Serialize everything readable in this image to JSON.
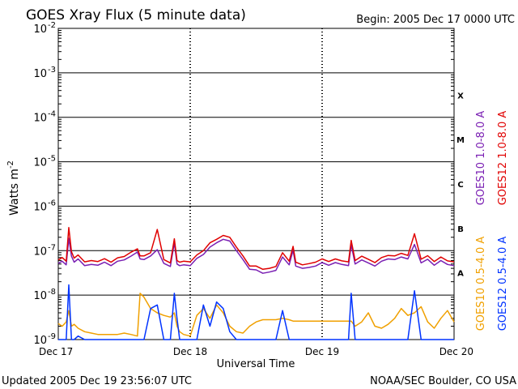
{
  "chart_data": {
    "type": "line",
    "title": "GOES Xray Flux (5 minute data)",
    "begin": "Begin:  2005 Dec 17 0000 UTC",
    "ylabel_main": "Watts m",
    "ylabel_sup": "-2",
    "xlabel": "Universal Time",
    "yscale": "log",
    "ylim": [
      1e-09,
      0.01
    ],
    "y_ticks": [
      {
        "exp": -2,
        "label": "-2"
      },
      {
        "exp": -3,
        "label": "-3"
      },
      {
        "exp": -4,
        "label": "-4"
      },
      {
        "exp": -5,
        "label": "-5"
      },
      {
        "exp": -6,
        "label": "-6"
      },
      {
        "exp": -7,
        "label": "-7"
      },
      {
        "exp": -8,
        "label": "-8"
      },
      {
        "exp": -9,
        "label": "-9"
      }
    ],
    "y_tick_base": "10",
    "x_ticks": [
      "Dec 17",
      "Dec 18",
      "Dec 19",
      "Dec 20"
    ],
    "x_range_days": [
      0,
      3
    ],
    "classes": [
      {
        "label": "X",
        "exp": -3.5
      },
      {
        "label": "M",
        "exp": -4.5
      },
      {
        "label": "C",
        "exp": -5.5
      },
      {
        "label": "B",
        "exp": -6.5
      },
      {
        "label": "A",
        "exp": -7.5
      }
    ],
    "series": [
      {
        "name": "GOES10 1.0-8.0 A",
        "color": "#7a1fb3",
        "x": [
          0,
          0.03,
          0.06,
          0.08,
          0.1,
          0.12,
          0.15,
          0.2,
          0.25,
          0.3,
          0.35,
          0.4,
          0.45,
          0.5,
          0.55,
          0.6,
          0.62,
          0.65,
          0.7,
          0.75,
          0.8,
          0.85,
          0.88,
          0.9,
          0.92,
          0.95,
          1.0,
          1.05,
          1.1,
          1.15,
          1.2,
          1.25,
          1.3,
          1.35,
          1.4,
          1.45,
          1.5,
          1.55,
          1.6,
          1.65,
          1.7,
          1.75,
          1.78,
          1.8,
          1.85,
          1.9,
          1.95,
          2.0,
          2.05,
          2.1,
          2.15,
          2.2,
          2.22,
          2.25,
          2.3,
          2.35,
          2.4,
          2.45,
          2.5,
          2.55,
          2.6,
          2.65,
          2.7,
          2.75,
          2.8,
          2.85,
          2.9,
          2.95,
          3.0
        ],
        "y": [
          5.2e-08,
          5.8e-08,
          4.8e-08,
          1.9e-07,
          7.5e-08,
          5.5e-08,
          6.5e-08,
          4.6e-08,
          4.9e-08,
          4.7e-08,
          5.5e-08,
          4.6e-08,
          5.8e-08,
          6.2e-08,
          7.5e-08,
          9.3e-08,
          6.5e-08,
          6.3e-08,
          7.6e-08,
          1.05e-07,
          5.2e-08,
          4.4e-08,
          1.5e-07,
          5e-08,
          4.6e-08,
          4.8e-08,
          4.6e-08,
          6.7e-08,
          8.2e-08,
          1.2e-07,
          1.5e-07,
          1.8e-07,
          1.65e-07,
          1e-07,
          6.3e-08,
          3.8e-08,
          3.7e-08,
          3.1e-08,
          3.3e-08,
          3.6e-08,
          7.2e-08,
          4.8e-08,
          1.02e-07,
          4.5e-08,
          4e-08,
          4.2e-08,
          4.5e-08,
          5.4e-08,
          4.7e-08,
          5.4e-08,
          4.9e-08,
          4.6e-08,
          1.35e-07,
          5e-08,
          6.2e-08,
          5.3e-08,
          4.5e-08,
          5.8e-08,
          6.5e-08,
          6.3e-08,
          7.2e-08,
          6.5e-08,
          1.38e-07,
          5.3e-08,
          6.4e-08,
          4.7e-08,
          6e-08,
          4.9e-08,
          4.6e-08
        ]
      },
      {
        "name": "GOES12 1.0-8.0 A",
        "color": "#e00000",
        "x": [
          0,
          0.03,
          0.06,
          0.08,
          0.1,
          0.12,
          0.15,
          0.2,
          0.25,
          0.3,
          0.35,
          0.4,
          0.45,
          0.5,
          0.55,
          0.6,
          0.62,
          0.65,
          0.7,
          0.75,
          0.8,
          0.85,
          0.88,
          0.9,
          0.92,
          0.95,
          1.0,
          1.05,
          1.1,
          1.15,
          1.2,
          1.25,
          1.3,
          1.35,
          1.4,
          1.45,
          1.5,
          1.55,
          1.6,
          1.65,
          1.7,
          1.75,
          1.78,
          1.8,
          1.85,
          1.9,
          1.95,
          2.0,
          2.05,
          2.1,
          2.15,
          2.2,
          2.22,
          2.25,
          2.3,
          2.35,
          2.4,
          2.45,
          2.5,
          2.55,
          2.6,
          2.65,
          2.7,
          2.75,
          2.8,
          2.85,
          2.9,
          2.95,
          3.0
        ],
        "y": [
          6.2e-08,
          7e-08,
          5.8e-08,
          3.3e-07,
          9.5e-08,
          6.8e-08,
          8e-08,
          5.6e-08,
          6e-08,
          5.7e-08,
          6.6e-08,
          5.5e-08,
          6.9e-08,
          7.4e-08,
          9.2e-08,
          1.1e-07,
          7.6e-08,
          7.6e-08,
          9e-08,
          3e-07,
          6.3e-08,
          5.3e-08,
          1.85e-07,
          6e-08,
          5.5e-08,
          5.8e-08,
          5.6e-08,
          8e-08,
          1e-07,
          1.5e-07,
          1.8e-07,
          2.2e-07,
          2e-07,
          1.2e-07,
          7.6e-08,
          4.5e-08,
          4.5e-08,
          3.8e-08,
          4e-08,
          4.4e-08,
          9e-08,
          5.8e-08,
          1.25e-07,
          5.5e-08,
          4.8e-08,
          5.1e-08,
          5.5e-08,
          6.5e-08,
          5.7e-08,
          6.5e-08,
          5.9e-08,
          5.6e-08,
          1.7e-07,
          6e-08,
          7.5e-08,
          6.4e-08,
          5.4e-08,
          7e-08,
          7.8e-08,
          7.6e-08,
          8.7e-08,
          7.8e-08,
          2.4e-07,
          6.4e-08,
          7.7e-08,
          5.7e-08,
          7.2e-08,
          5.9e-08,
          5.6e-08
        ]
      },
      {
        "name": "GOES10 0.5-4.0 A",
        "color": "#f0a000",
        "x": [
          0,
          0.03,
          0.06,
          0.08,
          0.1,
          0.12,
          0.15,
          0.2,
          0.25,
          0.3,
          0.35,
          0.4,
          0.45,
          0.5,
          0.55,
          0.6,
          0.62,
          0.65,
          0.7,
          0.75,
          0.8,
          0.85,
          0.88,
          0.9,
          0.92,
          0.95,
          1.0,
          1.05,
          1.1,
          1.15,
          1.2,
          1.25,
          1.3,
          1.35,
          1.4,
          1.45,
          1.5,
          1.55,
          1.6,
          1.65,
          1.7,
          1.75,
          1.78,
          1.8,
          1.85,
          1.9,
          1.95,
          2.0,
          2.05,
          2.1,
          2.15,
          2.2,
          2.22,
          2.25,
          2.3,
          2.35,
          2.4,
          2.45,
          2.5,
          2.55,
          2.6,
          2.65,
          2.7,
          2.75,
          2.8,
          2.85,
          2.9,
          2.95,
          3.0
        ],
        "y": [
          2.3e-09,
          2e-09,
          2.5e-09,
          4.5e-09,
          2e-09,
          2.2e-09,
          1.8e-09,
          1.5e-09,
          1.4e-09,
          1.3e-09,
          1.3e-09,
          1.3e-09,
          1.3e-09,
          1.4e-09,
          1.3e-09,
          1.2e-09,
          1.1e-08,
          9e-09,
          5e-09,
          4e-09,
          3.5e-09,
          3.2e-09,
          4e-09,
          2e-09,
          1.5e-09,
          1.3e-09,
          1.2e-09,
          3.5e-09,
          5e-09,
          3e-09,
          6e-09,
          4e-09,
          2e-09,
          1.5e-09,
          1.4e-09,
          2e-09,
          2.5e-09,
          2.8e-09,
          2.8e-09,
          2.8e-09,
          3e-09,
          2.8e-09,
          2.6e-09,
          2.6e-09,
          2.6e-09,
          2.6e-09,
          2.6e-09,
          2.6e-09,
          2.6e-09,
          2.6e-09,
          2.6e-09,
          2.6e-09,
          2.6e-09,
          2e-09,
          2.5e-09,
          4e-09,
          2e-09,
          1.8e-09,
          2.2e-09,
          3e-09,
          5e-09,
          3.5e-09,
          4e-09,
          5.5e-09,
          2.5e-09,
          1.8e-09,
          3e-09,
          4.5e-09,
          2.5e-09
        ]
      },
      {
        "name": "GOES12 0.5-4.0 A",
        "color": "#0033ff",
        "x": [
          0,
          0.03,
          0.06,
          0.08,
          0.1,
          0.12,
          0.15,
          0.2,
          0.25,
          0.3,
          0.35,
          0.4,
          0.45,
          0.5,
          0.55,
          0.6,
          0.62,
          0.65,
          0.7,
          0.75,
          0.8,
          0.85,
          0.88,
          0.9,
          0.92,
          0.95,
          1.0,
          1.05,
          1.1,
          1.15,
          1.2,
          1.25,
          1.3,
          1.35,
          1.4,
          1.45,
          1.5,
          1.55,
          1.6,
          1.65,
          1.7,
          1.75,
          1.78,
          1.8,
          1.85,
          1.9,
          1.95,
          2.0,
          2.05,
          2.1,
          2.15,
          2.2,
          2.22,
          2.25,
          2.3,
          2.35,
          2.4,
          2.45,
          2.5,
          2.55,
          2.6,
          2.65,
          2.7,
          2.75,
          2.8,
          2.85,
          2.9,
          2.95,
          3.0
        ],
        "y": [
          1e-09,
          1e-09,
          1e-09,
          1.7e-08,
          1e-09,
          1e-09,
          1.2e-09,
          1e-09,
          1e-09,
          1e-09,
          1e-09,
          1e-09,
          1e-09,
          1e-09,
          1e-09,
          1e-09,
          1e-09,
          1e-09,
          5e-09,
          6e-09,
          1e-09,
          1e-09,
          1.1e-08,
          3e-09,
          1e-09,
          1e-09,
          1e-09,
          1e-09,
          6e-09,
          2e-09,
          7e-09,
          5e-09,
          1.5e-09,
          1e-09,
          1e-09,
          1e-09,
          1e-09,
          1e-09,
          1e-09,
          1e-09,
          4.5e-09,
          1e-09,
          1e-09,
          1e-09,
          1e-09,
          1e-09,
          1e-09,
          1e-09,
          1e-09,
          1e-09,
          1e-09,
          1e-09,
          1.1e-08,
          1e-09,
          1e-09,
          1e-09,
          1e-09,
          1e-09,
          1e-09,
          1e-09,
          1e-09,
          1e-09,
          1.25e-08,
          1e-09,
          1e-09,
          1e-09,
          1e-09,
          1e-09,
          1e-09
        ]
      }
    ],
    "legend_placement": "right, rotated"
  },
  "footer": {
    "updated": "Updated 2005 Dec 19 23:56:07 UTC",
    "source": "NOAA/SEC Boulder, CO USA"
  }
}
